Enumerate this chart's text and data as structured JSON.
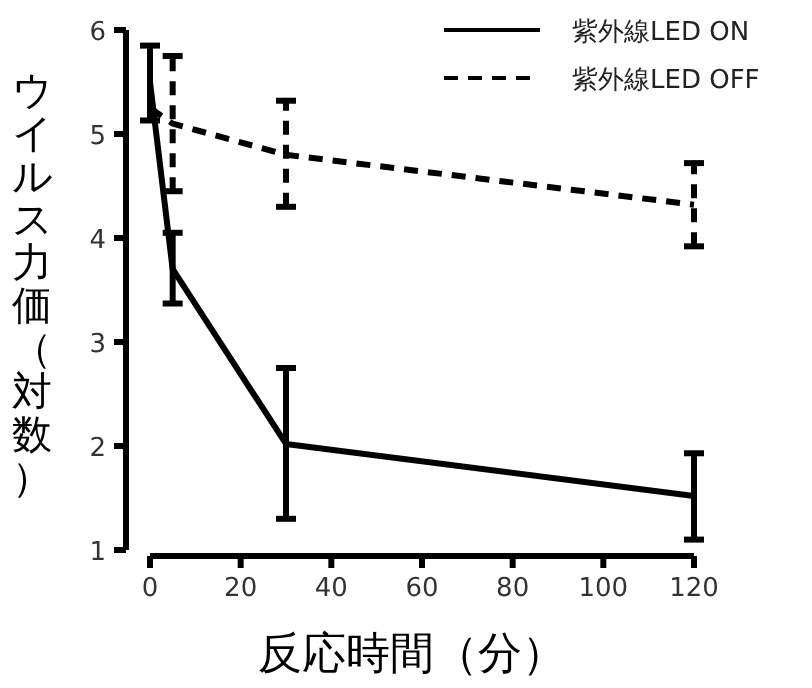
{
  "chart_data": {
    "type": "line",
    "xlabel": "反応時間（分）",
    "ylabel": "ウイルス力価（対数）",
    "xlim": [
      0,
      120
    ],
    "xticks": [
      0,
      20,
      40,
      60,
      80,
      100,
      120
    ],
    "ylim": [
      1,
      6
    ],
    "yticks": [
      1,
      2,
      3,
      4,
      5,
      6
    ],
    "grid": false,
    "legend": "top right",
    "marker": "none",
    "series": [
      {
        "name": "紫外線LED ON",
        "color": "#000000",
        "line_style": "solid",
        "x": [
          0,
          5,
          30,
          120
        ],
        "values": [
          5.5,
          3.7,
          2.02,
          1.52
        ],
        "errors": [
          [
            5.13,
            5.85
          ],
          [
            3.37,
            4.05
          ],
          [
            1.3,
            2.75
          ],
          [
            1.1,
            1.93
          ]
        ]
      },
      {
        "name": "紫外線LED OFF",
        "color": "#000000",
        "line_style": "dashed",
        "x": [
          0,
          5,
          30,
          120
        ],
        "values": [
          5.25,
          5.1,
          4.8,
          4.32
        ],
        "errors": [
          null,
          [
            4.45,
            5.75
          ],
          [
            4.3,
            5.32
          ],
          [
            3.92,
            4.72
          ]
        ]
      }
    ]
  }
}
